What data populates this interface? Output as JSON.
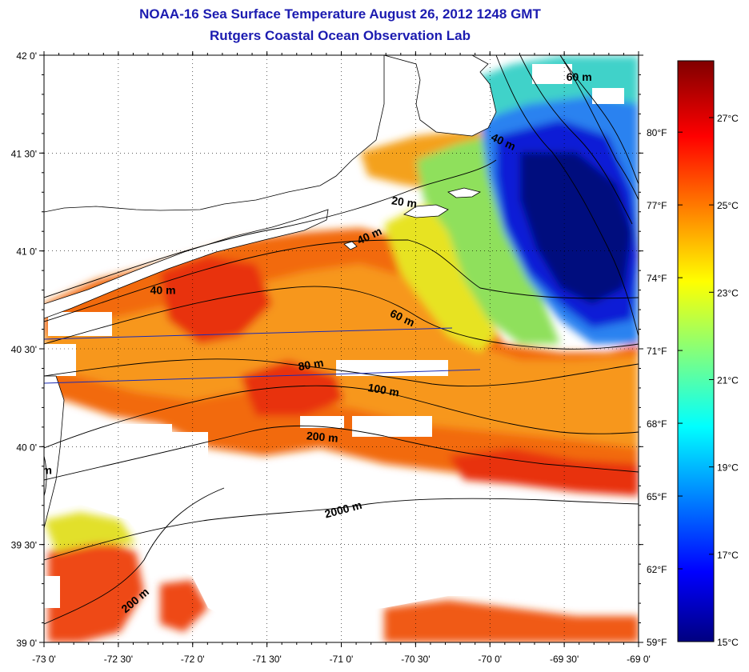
{
  "title": "NOAA-16 Sea Surface Temperature August 26, 2012 1248 GMT",
  "subtitle": "Rutgers Coastal Ocean Observation Lab",
  "map": {
    "lon_range": [
      -73.0,
      -69.0
    ],
    "lat_range": [
      39.0,
      42.0
    ],
    "lon_ticks": [
      "-73 0'",
      "-72 30'",
      "-72 0'",
      "-71 30'",
      "-71 0'",
      "-70 30'",
      "-70 0'",
      "-69 30'",
      "-69 0'"
    ],
    "lat_ticks": [
      "39 0'",
      "39 30'",
      "40 0'",
      "40 30'",
      "41 0'",
      "41 30'",
      "42 0'"
    ],
    "grid": "dotted",
    "contour_labels": [
      {
        "text": "20 m",
        "lon": -70.58,
        "lat": 41.23,
        "rot": 8
      },
      {
        "text": "40 m",
        "lon": -70.8,
        "lat": 41.06,
        "rot": -25
      },
      {
        "text": "40 m",
        "lon": -72.2,
        "lat": 40.78,
        "rot": 0
      },
      {
        "text": "40 m",
        "lon": -69.92,
        "lat": 41.54,
        "rot": 25
      },
      {
        "text": "60 m",
        "lon": -70.6,
        "lat": 40.64,
        "rot": 25
      },
      {
        "text": "80 m",
        "lon": -71.2,
        "lat": 40.4,
        "rot": -10
      },
      {
        "text": "100 m",
        "lon": -70.72,
        "lat": 40.27,
        "rot": 10
      },
      {
        "text": "200 m",
        "lon": -71.13,
        "lat": 40.03,
        "rot": 5
      },
      {
        "text": "2000 m",
        "lon": -70.98,
        "lat": 39.66,
        "rot": -15
      },
      {
        "text": "200 m",
        "lon": -72.37,
        "lat": 39.2,
        "rot": -40
      },
      {
        "text": "m",
        "lon": -72.98,
        "lat": 39.86,
        "rot": 0
      },
      {
        "text": "60 m",
        "lon": -69.4,
        "lat": 41.87,
        "rot": 0
      }
    ]
  },
  "colorbar": {
    "min_c": 15,
    "max_c": 28.3,
    "celsius_ticks": [
      "15°C",
      "17°C",
      "19°C",
      "21°C",
      "23°C",
      "25°C",
      "27°C"
    ],
    "fahrenheit_ticks": [
      "59°F",
      "62°F",
      "65°F",
      "68°F",
      "71°F",
      "74°F",
      "77°F",
      "80°F"
    ],
    "colors": [
      "#000080",
      "#0000ff",
      "#00ffff",
      "#ffff00",
      "#ff0000",
      "#800000"
    ]
  },
  "colors": {
    "title": "#1b1bb0",
    "cloud": "#ffffff",
    "land": "#ffffff"
  }
}
